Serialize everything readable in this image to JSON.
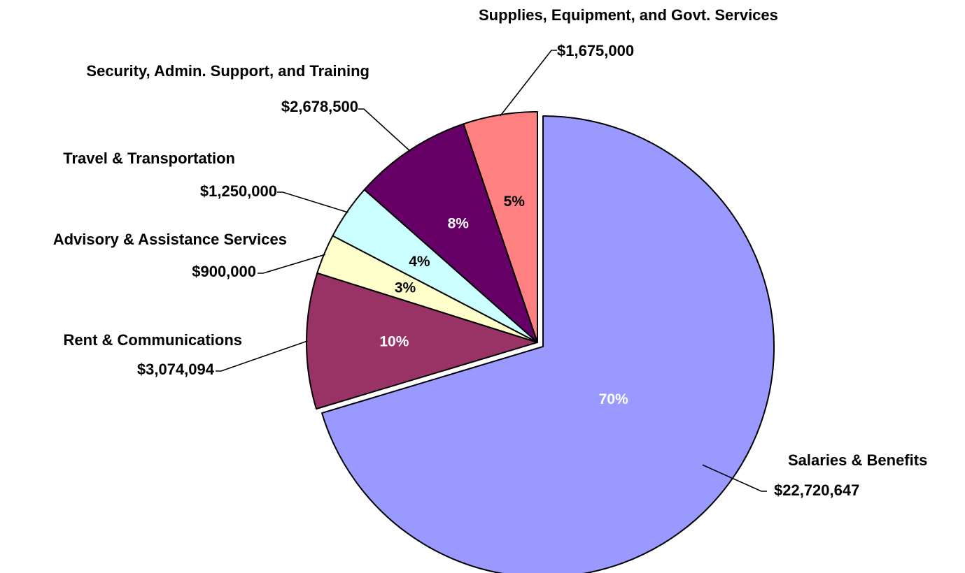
{
  "chart_data": {
    "type": "pie",
    "start_angle": 0,
    "direction": "clockwise",
    "legend": "none",
    "slices": [
      {
        "name": "Salaries & Benefits",
        "value": 22720647,
        "amount_label": "$22,720,647",
        "percent_label": "70%",
        "color": "#9999ff",
        "text_color": "#ffffff",
        "exploded": true
      },
      {
        "name": "Rent & Communications",
        "value": 3074094,
        "amount_label": "$3,074,094",
        "percent_label": "10%",
        "color": "#993366",
        "text_color": "#ffffff",
        "exploded": false
      },
      {
        "name": "Advisory & Assistance Services",
        "value": 900000,
        "amount_label": "$900,000",
        "percent_label": "3%",
        "color": "#ffffcc",
        "text_color": "#000000",
        "exploded": false
      },
      {
        "name": "Travel & Transportation",
        "value": 1250000,
        "amount_label": "$1,250,000",
        "percent_label": "4%",
        "color": "#ccffff",
        "text_color": "#000000",
        "exploded": false
      },
      {
        "name": "Security, Admin. Support, and Training",
        "value": 2678500,
        "amount_label": "$2,678,500",
        "percent_label": "8%",
        "color": "#660066",
        "text_color": "#ffffff",
        "exploded": false
      },
      {
        "name": "Supplies, Equipment, and Govt. Services",
        "value": 1675000,
        "amount_label": "$1,675,000",
        "percent_label": "5%",
        "color": "#ff8080",
        "text_color": "#000000",
        "exploded": false
      }
    ]
  }
}
